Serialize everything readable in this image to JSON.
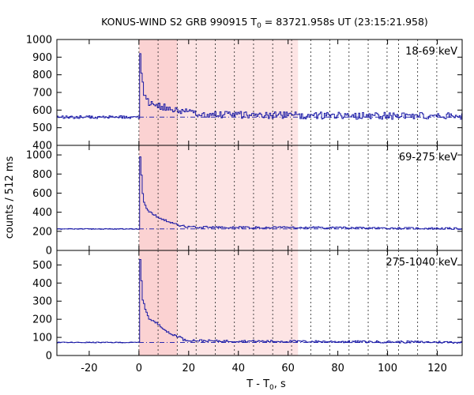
{
  "chart_data": {
    "type": "line",
    "title": {
      "prefix": "KONUS-WIND S2 GRB 990915 T",
      "sub": "0",
      "suffix": " = 83721.958s UT (23:15:21.958)"
    },
    "xlabel": {
      "prefix": "T - T",
      "sub": "0",
      "suffix": ", s"
    },
    "ylabel": "counts / 512 ms",
    "xlim": [
      -33,
      130
    ],
    "x_ticks": [
      -20,
      0,
      20,
      40,
      60,
      80,
      100,
      120
    ],
    "bin_width_s": 0.512,
    "trigger_time_s": 0,
    "shaded_interval_s": [
      0,
      64
    ],
    "dashed_lines_s": [
      0,
      7.7,
      15.4,
      23.0,
      30.7,
      38.4,
      46.1,
      53.8,
      61.4,
      69.1,
      76.8,
      84.5,
      92.2,
      99.8,
      104.4,
      112.1,
      119.8
    ],
    "series": [
      {
        "name": "18-69 keV",
        "ylim": [
          400,
          1000
        ],
        "y_ticks": [
          400,
          500,
          600,
          700,
          800,
          900,
          1000
        ],
        "background": 560,
        "peak": 920,
        "decay": [
          {
            "t": 0.5,
            "v": 920
          },
          {
            "t": 1,
            "v": 760
          },
          {
            "t": 2,
            "v": 690
          },
          {
            "t": 4,
            "v": 640
          },
          {
            "t": 8,
            "v": 620
          },
          {
            "t": 12,
            "v": 610
          },
          {
            "t": 16,
            "v": 590
          },
          {
            "t": 30,
            "v": 575
          },
          {
            "t": 60,
            "v": 570
          },
          {
            "t": 130,
            "v": 565
          }
        ],
        "noise": 20
      },
      {
        "name": "69-275 keV",
        "ylim": [
          0,
          1100
        ],
        "y_ticks": [
          0,
          200,
          400,
          600,
          800,
          1000
        ],
        "background": 225,
        "peak": 980,
        "decay": [
          {
            "t": 0.5,
            "v": 980
          },
          {
            "t": 1,
            "v": 640
          },
          {
            "t": 2,
            "v": 480
          },
          {
            "t": 4,
            "v": 400
          },
          {
            "t": 8,
            "v": 340
          },
          {
            "t": 12,
            "v": 300
          },
          {
            "t": 16,
            "v": 260
          },
          {
            "t": 20,
            "v": 245
          },
          {
            "t": 40,
            "v": 240
          },
          {
            "t": 60,
            "v": 240
          },
          {
            "t": 130,
            "v": 228
          }
        ],
        "noise": 10
      },
      {
        "name": "275-1040 keV",
        "ylim": [
          0,
          580
        ],
        "y_ticks": [
          0,
          100,
          200,
          300,
          400,
          500
        ],
        "background": 72,
        "peak": 530,
        "decay": [
          {
            "t": 0.5,
            "v": 530
          },
          {
            "t": 1,
            "v": 330
          },
          {
            "t": 2,
            "v": 270
          },
          {
            "t": 4,
            "v": 200
          },
          {
            "t": 8,
            "v": 170
          },
          {
            "t": 12,
            "v": 120
          },
          {
            "t": 16,
            "v": 105
          },
          {
            "t": 18,
            "v": 85
          },
          {
            "t": 30,
            "v": 80
          },
          {
            "t": 130,
            "v": 73
          }
        ],
        "noise": 6
      }
    ]
  }
}
